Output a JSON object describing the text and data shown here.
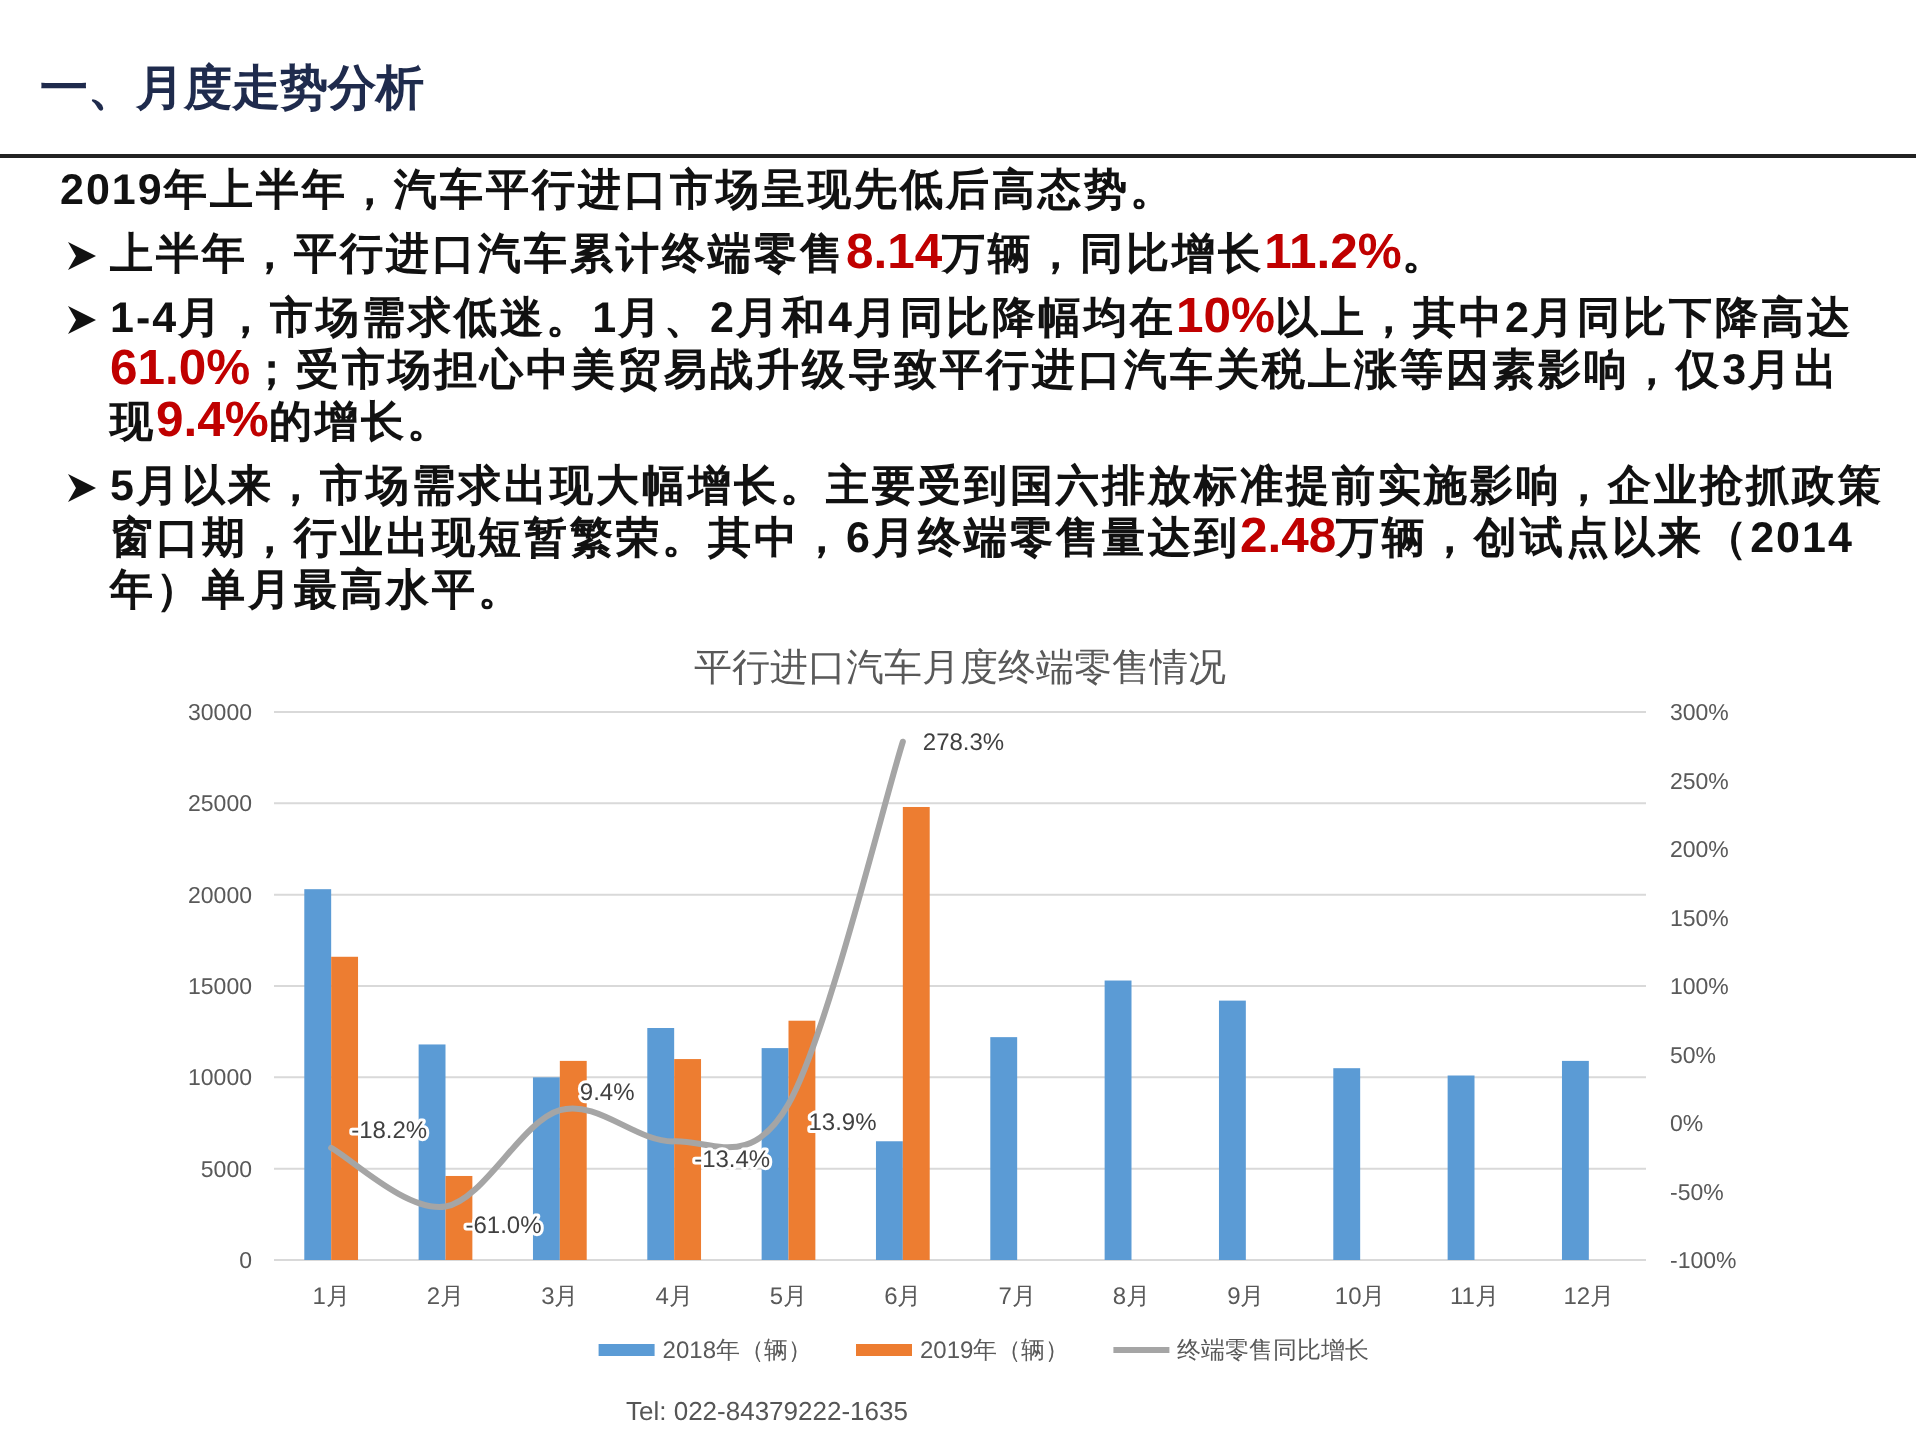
{
  "chart_data": {
    "type": "bar",
    "title": "平行进口汽车月度终端零售情况",
    "categories": [
      "1月",
      "2月",
      "3月",
      "4月",
      "5月",
      "6月",
      "7月",
      "8月",
      "9月",
      "10月",
      "11月",
      "12月"
    ],
    "series": [
      {
        "name": "2018年（辆）",
        "color": "#5b9bd5",
        "values": [
          20300,
          11800,
          10000,
          12700,
          11600,
          6500,
          12200,
          15300,
          14200,
          10500,
          10100,
          10900
        ]
      },
      {
        "name": "2019年（辆）",
        "color": "#ed7d31",
        "values": [
          16600,
          4600,
          10900,
          11000,
          13100,
          24800,
          null,
          null,
          null,
          null,
          null,
          null
        ]
      },
      {
        "name": "终端零售同比增长",
        "type": "line",
        "axis": "y2",
        "color": "#a5a5a5",
        "values": [
          -18.2,
          -61.0,
          9.4,
          -13.4,
          13.9,
          278.3,
          null,
          null,
          null,
          null,
          null,
          null
        ],
        "value_labels": [
          "-18.2%",
          "-61.0%",
          "9.4%",
          "-13.4%",
          "13.9%",
          "278.3%",
          null,
          null,
          null,
          null,
          null,
          null
        ]
      }
    ],
    "ylim": [
      0,
      30000
    ],
    "yticks": [
      0,
      5000,
      10000,
      15000,
      20000,
      25000,
      30000
    ],
    "y2lim": [
      -100,
      300
    ],
    "y2ticks": [
      {
        "value": -100,
        "label": "-100%"
      },
      {
        "value": -50,
        "label": "-50%"
      },
      {
        "value": 0,
        "label": "0%"
      },
      {
        "value": 50,
        "label": "50%"
      },
      {
        "value": 100,
        "label": "100%"
      },
      {
        "value": 150,
        "label": "150%"
      },
      {
        "value": 200,
        "label": "200%"
      },
      {
        "value": 250,
        "label": "250%"
      },
      {
        "value": 300,
        "label": "300%"
      }
    ],
    "grid": "y",
    "legend": "bottom",
    "annotations": [
      "一、月度走势分析",
      "2019年上半年，汽车平行进口市场呈现先低后高态势。",
      "上半年，平行进口汽车累计终端零售**8.14**万辆，同比增长**11.2%**。",
      "1-4月，市场需求低迷。1月、2月和4月同比降幅均在**10%**以上，其中2月同比下降高达**61.0%**；受市场担心中美贸易战升级导致平行进口汽车关税上涨等因素影响，仅3月出现**9.4%**的增长。",
      "5月以来，市场需求出现大幅增长。主要受到国六排放标准提前实施影响，企业抢抓政策窗口期，行业出现短暂繁荣。其中，6月终端零售量达到**2.48**万辆，创试点以来（2014年）单月最高水平。",
      "Tel: 022-84379222-1635"
    ]
  }
}
